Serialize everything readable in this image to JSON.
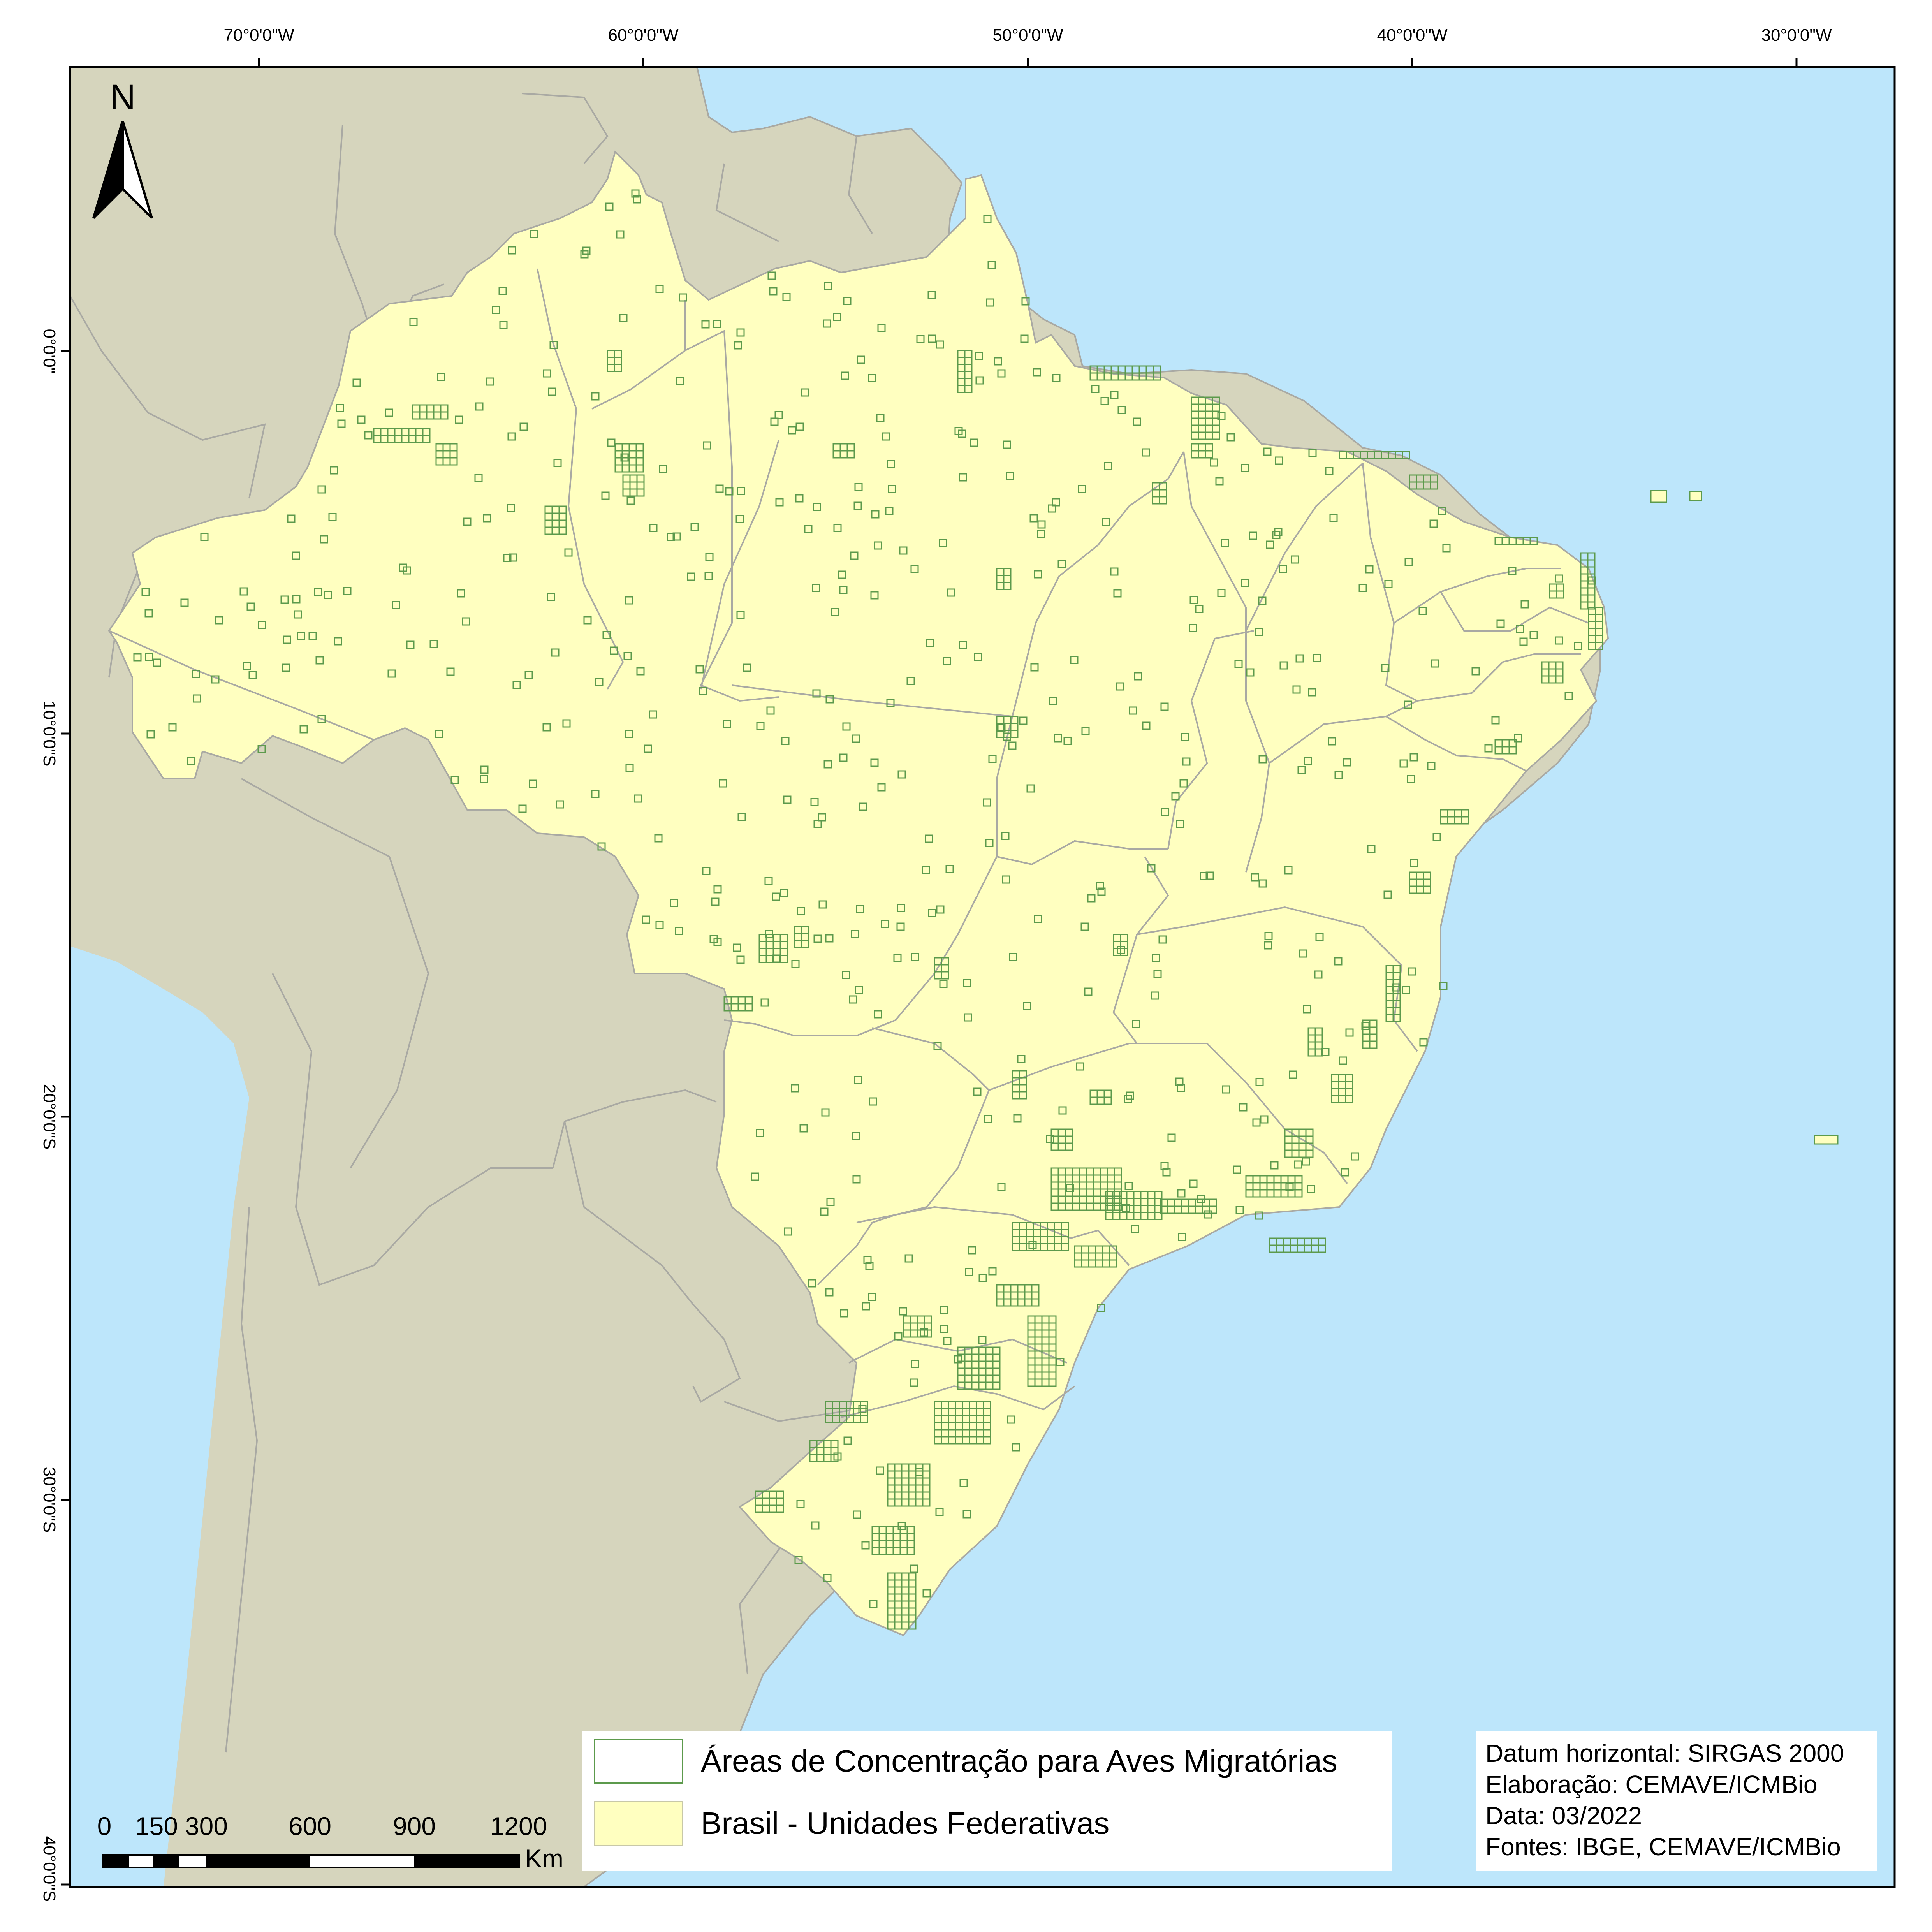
{
  "map": {
    "lon_labels": [
      "70°0'0\"W",
      "60°0'0\"W",
      "50°0'0\"W",
      "40°0'0\"W",
      "30°0'0\"W"
    ],
    "lat_labels": [
      "0°0'0\"",
      "10°0'0\"S",
      "20°0'0\"S",
      "30°0'0\"S",
      "40°0'0\"S"
    ],
    "north_letter": "N",
    "colors": {
      "ocean": "#bde6fb",
      "neighbor_land": "#d6d5bd",
      "brazil_fill": "#ffffc0",
      "grid_cell": "#5c9a4c",
      "border_line": "#a9a9a3"
    }
  },
  "legend": {
    "items": [
      {
        "label": "Áreas de Concentração para Aves Migratórias",
        "swatch": "outline"
      },
      {
        "label": "Brasil - Unidades Federativas",
        "swatch": "fill"
      }
    ]
  },
  "credits": {
    "datum": "Datum horizontal: SIRGAS 2000",
    "elaboration": "Elaboração: CEMAVE/ICMBio",
    "date": "Data: 03/2022",
    "sources": "Fontes: IBGE, CEMAVE/ICMBio"
  },
  "scalebar": {
    "labels": [
      "0",
      "150",
      "300",
      "600",
      "900",
      "1200"
    ],
    "unit": "Km"
  }
}
